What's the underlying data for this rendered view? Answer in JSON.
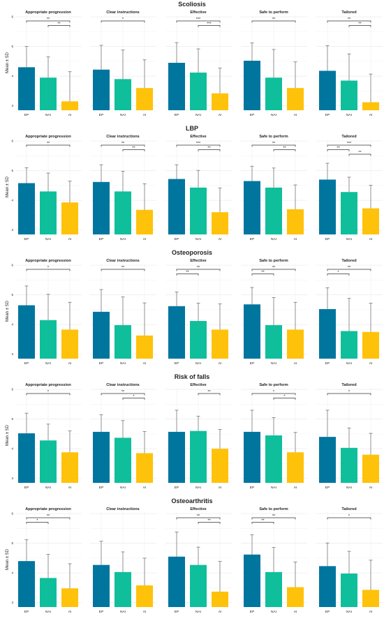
{
  "figure": {
    "y_axis_label": "Mean ± SD",
    "panel_titles": [
      "Appropriate progression",
      "Clear instructions",
      "Effective",
      "Safe to perform",
      "Tailored"
    ],
    "colors": {
      "EP": "#00769f",
      "NAI": "#0fbf9b",
      "AI": "#ffc20a",
      "grid": "#ececec",
      "error_bar": "#777777",
      "bracket": "#333333"
    }
  },
  "chart_data": [
    {
      "type": "bar",
      "title": "Scoliosis",
      "categories": [
        "EP",
        "NAI",
        "AI"
      ],
      "ylim": [
        2.85,
        6.05
      ],
      "yticks": [
        3,
        4,
        5,
        6
      ],
      "ylabel": "Mean ± SD",
      "grid": true,
      "panels": [
        {
          "title": "Appropriate progression",
          "values": [
            4.3,
            3.95,
            3.15
          ],
          "sd": [
            0.7,
            0.7,
            1.0
          ],
          "brackets": [
            {
              "from": "EP",
              "to": "AI",
              "label": "**"
            },
            {
              "from": "NAI",
              "to": "AI",
              "label": "**"
            }
          ]
        },
        {
          "title": "Clear instructions",
          "values": [
            4.22,
            3.9,
            3.6
          ],
          "sd": [
            0.82,
            0.98,
            0.95
          ],
          "brackets": [
            {
              "from": "EP",
              "to": "AI",
              "label": "*"
            }
          ]
        },
        {
          "title": "Effective",
          "values": [
            4.45,
            4.12,
            3.42
          ],
          "sd": [
            0.68,
            0.8,
            0.85
          ],
          "brackets": [
            {
              "from": "EP",
              "to": "AI",
              "label": "***"
            },
            {
              "from": "NAI",
              "to": "AI",
              "label": "***"
            }
          ]
        },
        {
          "title": "Safe to perform",
          "values": [
            4.52,
            3.95,
            3.6
          ],
          "sd": [
            0.6,
            0.95,
            0.88
          ],
          "brackets": [
            {
              "from": "EP",
              "to": "AI",
              "label": "**"
            }
          ]
        },
        {
          "title": "Tailored",
          "values": [
            4.18,
            3.85,
            3.12
          ],
          "sd": [
            0.85,
            0.9,
            0.95
          ],
          "brackets": [
            {
              "from": "EP",
              "to": "AI",
              "label": "**"
            },
            {
              "from": "NAI",
              "to": "AI",
              "label": "**"
            }
          ]
        }
      ]
    },
    {
      "type": "bar",
      "title": "LBP",
      "categories": [
        "EP",
        "NAI",
        "AI"
      ],
      "ylim": [
        2.85,
        6.05
      ],
      "yticks": [
        3,
        4,
        5,
        6
      ],
      "ylabel": "Mean ± SD",
      "grid": true,
      "panels": [
        {
          "title": "Appropriate progression",
          "values": [
            4.58,
            4.3,
            3.93
          ],
          "sd": [
            0.52,
            0.62,
            0.72
          ],
          "brackets": [
            {
              "from": "EP",
              "to": "AI",
              "label": "**"
            }
          ]
        },
        {
          "title": "Clear instructions",
          "values": [
            4.62,
            4.3,
            3.68
          ],
          "sd": [
            0.58,
            0.68,
            0.88
          ],
          "brackets": [
            {
              "from": "EP",
              "to": "AI",
              "label": "**"
            },
            {
              "from": "NAI",
              "to": "AI",
              "label": "**"
            }
          ]
        },
        {
          "title": "Effective",
          "values": [
            4.72,
            4.43,
            3.6
          ],
          "sd": [
            0.48,
            0.58,
            0.82
          ],
          "brackets": [
            {
              "from": "EP",
              "to": "AI",
              "label": "***"
            },
            {
              "from": "NAI",
              "to": "AI",
              "label": "**"
            }
          ]
        },
        {
          "title": "Safe to perform",
          "values": [
            4.65,
            4.43,
            3.7
          ],
          "sd": [
            0.5,
            0.66,
            0.82
          ],
          "brackets": [
            {
              "from": "EP",
              "to": "AI",
              "label": "**"
            },
            {
              "from": "NAI",
              "to": "AI",
              "label": "**"
            }
          ]
        },
        {
          "title": "Tailored",
          "values": [
            4.7,
            4.28,
            3.73
          ],
          "sd": [
            0.55,
            0.5,
            0.78
          ],
          "brackets": [
            {
              "from": "EP",
              "to": "NAI",
              "label": "**"
            },
            {
              "from": "EP",
              "to": "AI",
              "label": "***"
            },
            {
              "from": "NAI",
              "to": "AI",
              "label": "**"
            }
          ]
        }
      ]
    },
    {
      "type": "bar",
      "title": "Osteoporosis",
      "categories": [
        "EP",
        "NAI",
        "AI"
      ],
      "ylim": [
        2.85,
        6.05
      ],
      "yticks": [
        3,
        4,
        5,
        6
      ],
      "ylabel": "Mean ± SD",
      "grid": true,
      "panels": [
        {
          "title": "Appropriate progression",
          "values": [
            4.65,
            4.15,
            3.83
          ],
          "sd": [
            0.65,
            0.87,
            0.92
          ],
          "brackets": [
            {
              "from": "EP",
              "to": "AI",
              "label": "*"
            }
          ]
        },
        {
          "title": "Clear instructions",
          "values": [
            4.43,
            3.98,
            3.63
          ],
          "sd": [
            0.75,
            0.95,
            1.1
          ],
          "brackets": [
            {
              "from": "EP",
              "to": "AI",
              "label": "**"
            }
          ]
        },
        {
          "title": "Effective",
          "values": [
            4.62,
            4.12,
            3.83
          ],
          "sd": [
            0.48,
            0.6,
            0.87
          ],
          "brackets": [
            {
              "from": "EP",
              "to": "NAI",
              "label": "**"
            },
            {
              "from": "EP",
              "to": "AI",
              "label": "**"
            }
          ]
        },
        {
          "title": "Safe to perform",
          "values": [
            4.68,
            3.98,
            3.83
          ],
          "sd": [
            0.57,
            0.93,
            0.92
          ],
          "brackets": [
            {
              "from": "EP",
              "to": "NAI",
              "label": "**"
            },
            {
              "from": "EP",
              "to": "AI",
              "label": "**"
            }
          ]
        },
        {
          "title": "Tailored",
          "values": [
            4.52,
            3.78,
            3.75
          ],
          "sd": [
            0.72,
            1.1,
            0.97
          ],
          "brackets": [
            {
              "from": "EP",
              "to": "NAI",
              "label": "*"
            },
            {
              "from": "EP",
              "to": "AI",
              "label": "**"
            }
          ]
        }
      ]
    },
    {
      "type": "bar",
      "title": "Risk of falls",
      "categories": [
        "EP",
        "NAI",
        "AI"
      ],
      "ylim": [
        2.85,
        6.05
      ],
      "yticks": [
        3,
        4,
        5,
        6
      ],
      "ylabel": "Mean ± SD",
      "grid": true,
      "panels": [
        {
          "title": "Appropriate progression",
          "values": [
            4.52,
            4.28,
            3.88
          ],
          "sd": [
            0.68,
            0.55,
            0.72
          ],
          "brackets": [
            {
              "from": "EP",
              "to": "AI",
              "label": "*"
            }
          ]
        },
        {
          "title": "Clear instructions",
          "values": [
            4.57,
            4.37,
            3.85
          ],
          "sd": [
            0.58,
            0.58,
            0.73
          ],
          "brackets": [
            {
              "from": "EP",
              "to": "AI",
              "label": "**"
            },
            {
              "from": "NAI",
              "to": "AI",
              "label": "*"
            }
          ]
        },
        {
          "title": "Effective",
          "values": [
            4.57,
            4.6,
            4.0
          ],
          "sd": [
            0.73,
            0.5,
            0.65
          ],
          "brackets": [
            {
              "from": "NAI",
              "to": "AI",
              "label": "**"
            }
          ]
        },
        {
          "title": "Safe to perform",
          "values": [
            4.57,
            4.45,
            3.88
          ],
          "sd": [
            0.73,
            0.6,
            0.67
          ],
          "brackets": [
            {
              "from": "EP",
              "to": "AI",
              "label": "*"
            },
            {
              "from": "NAI",
              "to": "AI",
              "label": "*"
            }
          ]
        },
        {
          "title": "Tailored",
          "values": [
            4.4,
            4.03,
            3.8
          ],
          "sd": [
            0.9,
            0.67,
            0.72
          ],
          "brackets": [
            {
              "from": "EP",
              "to": "AI",
              "label": "*"
            }
          ]
        }
      ]
    },
    {
      "type": "bar",
      "title": "Osteoarthritis",
      "categories": [
        "EP",
        "NAI",
        "AI"
      ],
      "ylim": [
        2.85,
        6.05
      ],
      "yticks": [
        3,
        4,
        5,
        6
      ],
      "ylabel": "Mean ± SD",
      "grid": true,
      "panels": [
        {
          "title": "Appropriate progression",
          "values": [
            4.4,
            3.83,
            3.48
          ],
          "sd": [
            0.72,
            0.8,
            0.83
          ],
          "brackets": [
            {
              "from": "EP",
              "to": "NAI",
              "label": "*"
            },
            {
              "from": "EP",
              "to": "AI",
              "label": "**"
            }
          ]
        },
        {
          "title": "Clear instructions",
          "values": [
            4.27,
            4.03,
            3.58
          ],
          "sd": [
            0.8,
            0.68,
            0.92
          ],
          "brackets": []
        },
        {
          "title": "Effective",
          "values": [
            4.55,
            4.27,
            3.37
          ],
          "sd": [
            0.83,
            0.6,
            1.02
          ],
          "brackets": [
            {
              "from": "EP",
              "to": "AI",
              "label": "**"
            },
            {
              "from": "NAI",
              "to": "AI",
              "label": "**"
            }
          ]
        },
        {
          "title": "Safe to perform",
          "values": [
            4.62,
            4.03,
            3.52
          ],
          "sd": [
            0.67,
            0.83,
            0.85
          ],
          "brackets": [
            {
              "from": "EP",
              "to": "NAI",
              "label": "**"
            },
            {
              "from": "EP",
              "to": "AI",
              "label": "**"
            }
          ]
        },
        {
          "title": "Tailored",
          "values": [
            4.23,
            3.98,
            3.43
          ],
          "sd": [
            0.78,
            0.75,
            1.0
          ],
          "brackets": [
            {
              "from": "EP",
              "to": "AI",
              "label": "*"
            }
          ]
        }
      ]
    }
  ]
}
